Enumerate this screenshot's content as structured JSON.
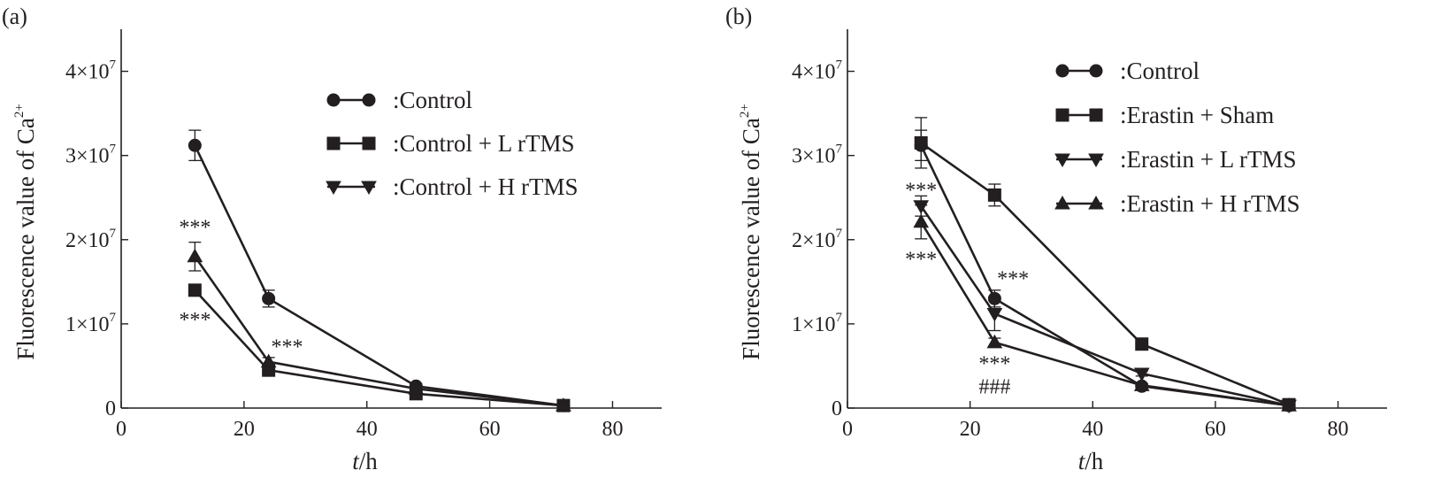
{
  "chart_data": [
    {
      "type": "line",
      "panel_label": "(a)",
      "xlabel_italic": "t",
      "xlabel_unit": "/h",
      "ylabel_main": "Fluorescence value of Ca",
      "ylabel_sup": "2+",
      "xlim": [
        0,
        88
      ],
      "ylim": [
        0,
        45000000
      ],
      "x_ticks": [
        "0",
        "20",
        "40",
        "60",
        "80"
      ],
      "y_ticks": [
        {
          "value": 0,
          "mant": "0",
          "exp": ""
        },
        {
          "value": 10000000,
          "mant": "1×10",
          "exp": "7"
        },
        {
          "value": 20000000,
          "mant": "2×10",
          "exp": "7"
        },
        {
          "value": 30000000,
          "mant": "3×10",
          "exp": "7"
        },
        {
          "value": 40000000,
          "mant": "4×10",
          "exp": "7"
        }
      ],
      "grid": false,
      "legend_position": "top-right",
      "series": [
        {
          "name": ":Control",
          "marker": "circle",
          "x": [
            12,
            24,
            48,
            72
          ],
          "y": [
            31200000,
            13000000,
            2600000,
            300000
          ],
          "err": [
            1800000,
            1000000,
            300000,
            100000
          ]
        },
        {
          "name": ":Control + L rTMS",
          "marker": "square",
          "x": [
            12,
            24,
            48,
            72
          ],
          "y": [
            14000000,
            4500000,
            1700000,
            300000
          ],
          "err": [
            600000,
            400000,
            200000,
            100000
          ]
        },
        {
          "name": ":Control + H rTMS",
          "marker": "triangle-down",
          "legend_marker": "triangle-down",
          "point_marker": "triangle-up",
          "x": [
            12,
            24,
            48,
            72
          ],
          "y": [
            18000000,
            5500000,
            2300000,
            300000
          ],
          "err": [
            1700000,
            500000,
            200000,
            100000
          ]
        }
      ],
      "annotations": [
        {
          "text": "***",
          "x": 12,
          "y": 21600000
        },
        {
          "text": "***",
          "x": 12,
          "y": 10600000
        },
        {
          "text": "***",
          "x": 27,
          "y": 7400000
        }
      ]
    },
    {
      "type": "line",
      "panel_label": "(b)",
      "xlabel_italic": "t",
      "xlabel_unit": "/h",
      "ylabel_main": "Fluorescence value of Ca",
      "ylabel_sup": "2+",
      "xlim": [
        0,
        88
      ],
      "ylim": [
        0,
        45000000
      ],
      "x_ticks": [
        "0",
        "20",
        "40",
        "60",
        "80"
      ],
      "y_ticks": [
        {
          "value": 0,
          "mant": "0",
          "exp": ""
        },
        {
          "value": 10000000,
          "mant": "1×10",
          "exp": "7"
        },
        {
          "value": 20000000,
          "mant": "2×10",
          "exp": "7"
        },
        {
          "value": 30000000,
          "mant": "3×10",
          "exp": "7"
        },
        {
          "value": 40000000,
          "mant": "4×10",
          "exp": "7"
        }
      ],
      "grid": false,
      "legend_position": "top-right",
      "series": [
        {
          "name": ":Control",
          "marker": "circle",
          "x": [
            12,
            24,
            48,
            72
          ],
          "y": [
            31200000,
            13000000,
            2600000,
            300000
          ],
          "err": [
            1800000,
            1000000,
            300000,
            100000
          ]
        },
        {
          "name": ":Erastin + Sham",
          "marker": "square",
          "x": [
            12,
            24,
            48,
            72
          ],
          "y": [
            31500000,
            25300000,
            7600000,
            400000
          ],
          "err": [
            3000000,
            1300000,
            300000,
            100000
          ]
        },
        {
          "name": ":Erastin + L rTMS",
          "marker": "triangle-down",
          "x": [
            12,
            24,
            48,
            72
          ],
          "y": [
            24000000,
            11200000,
            4100000,
            300000
          ],
          "err": [
            1200000,
            2000000,
            300000,
            100000
          ]
        },
        {
          "name": ":Erastin + H rTMS",
          "marker": "triangle-up",
          "x": [
            12,
            24,
            48,
            72
          ],
          "y": [
            22100000,
            7800000,
            2700000,
            300000
          ],
          "err": [
            2000000,
            500000,
            200000,
            100000
          ]
        }
      ],
      "annotations": [
        {
          "text": "***",
          "x": 12,
          "y": 26000000
        },
        {
          "text": "***",
          "x": 12,
          "y": 17800000
        },
        {
          "text": "***",
          "x": 27,
          "y": 15500000
        },
        {
          "text": "***",
          "x": 24,
          "y": 5400000
        },
        {
          "text": "###",
          "x": 24,
          "y": 2700000
        }
      ]
    }
  ]
}
